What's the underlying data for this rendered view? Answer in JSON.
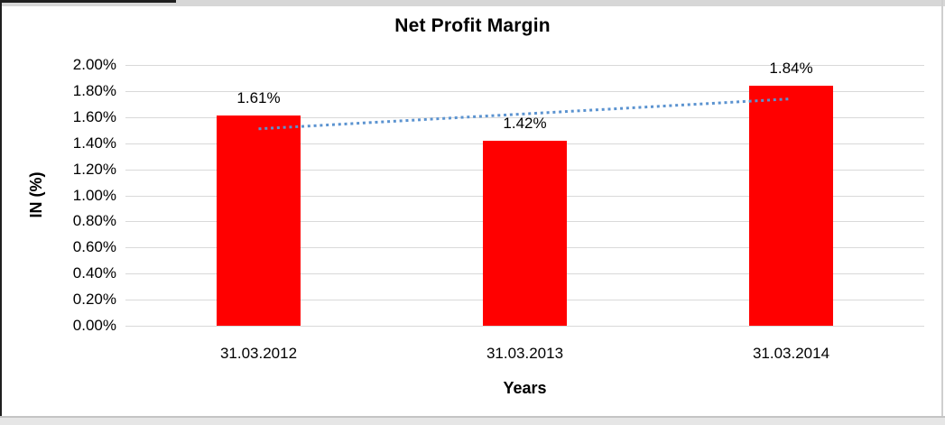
{
  "chart_data": {
    "type": "bar",
    "title": "Net Profit Margin",
    "xlabel": "Years",
    "ylabel": "IN (%)",
    "categories": [
      "31.03.2012",
      "31.03.2013",
      "31.03.2014"
    ],
    "series": [
      {
        "name": "Net Profit Margin",
        "values": [
          1.61,
          1.42,
          1.84
        ]
      }
    ],
    "values": [
      1.61,
      1.42,
      1.84
    ],
    "data_labels": [
      "1.61%",
      "1.42%",
      "1.84%"
    ],
    "y_ticks": [
      "0.00%",
      "0.20%",
      "0.40%",
      "0.60%",
      "0.80%",
      "1.00%",
      "1.20%",
      "1.40%",
      "1.60%",
      "1.80%",
      "2.00%"
    ],
    "ylim": [
      0,
      2.0
    ],
    "y_tick_step": 0.2,
    "grid": true,
    "legend": "none",
    "colors": {
      "bar": "#ff0000",
      "gridline": "#d9d9d9",
      "trendline": "#5b93d0",
      "text": "#000000"
    },
    "trendline": {
      "type": "linear",
      "style": "dotted",
      "fit_start_value": 1.51,
      "fit_end_value": 1.74
    }
  }
}
